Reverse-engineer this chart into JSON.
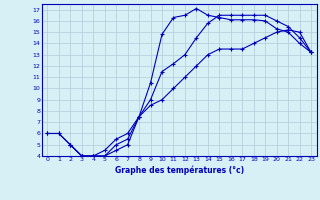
{
  "title": "Graphe des températures (°c)",
  "bg_color": "#d6f0f5",
  "line_color": "#0000bb",
  "grid_color": "#b0ccd8",
  "xlim": [
    -0.5,
    23.5
  ],
  "ylim": [
    4,
    17.5
  ],
  "xticks": [
    0,
    1,
    2,
    3,
    4,
    5,
    6,
    7,
    8,
    9,
    10,
    11,
    12,
    13,
    14,
    15,
    16,
    17,
    18,
    19,
    20,
    21,
    22,
    23
  ],
  "yticks": [
    4,
    5,
    6,
    7,
    8,
    9,
    10,
    11,
    12,
    13,
    14,
    15,
    16,
    17
  ],
  "line1_x": [
    0,
    1,
    2,
    3,
    4,
    5,
    6,
    7,
    8,
    9,
    10,
    11,
    12,
    13,
    14,
    15,
    16,
    17,
    18,
    19,
    20,
    21,
    22,
    23
  ],
  "line1_y": [
    6,
    6,
    5,
    4,
    4,
    4,
    4.5,
    5,
    7.5,
    10.5,
    14.8,
    16.3,
    16.5,
    17.1,
    16.5,
    16.3,
    16.1,
    16.1,
    16.1,
    16.0,
    15.3,
    15.0,
    14.0,
    13.2
  ],
  "line2_x": [
    0,
    1,
    2,
    3,
    4,
    5,
    6,
    7,
    8,
    9,
    10,
    11,
    12,
    13,
    14,
    15,
    16,
    17,
    18,
    19,
    20,
    21,
    22,
    23
  ],
  "line2_y": [
    6,
    6,
    5,
    4,
    4,
    4,
    5,
    5.5,
    7.5,
    9.0,
    11.5,
    12.2,
    13.0,
    14.5,
    15.8,
    16.5,
    16.5,
    16.5,
    16.5,
    16.5,
    16.0,
    15.5,
    14.5,
    13.2
  ],
  "line3_x": [
    2,
    3,
    4,
    5,
    6,
    7,
    8,
    9,
    10,
    11,
    12,
    13,
    14,
    15,
    16,
    17,
    18,
    19,
    20,
    21,
    22,
    23
  ],
  "line3_y": [
    5.0,
    4.0,
    4.0,
    4.5,
    5.5,
    6.0,
    7.5,
    8.5,
    9.0,
    10.0,
    11.0,
    12.0,
    13.0,
    13.5,
    13.5,
    13.5,
    14.0,
    14.5,
    15.0,
    15.2,
    15.0,
    13.2
  ]
}
